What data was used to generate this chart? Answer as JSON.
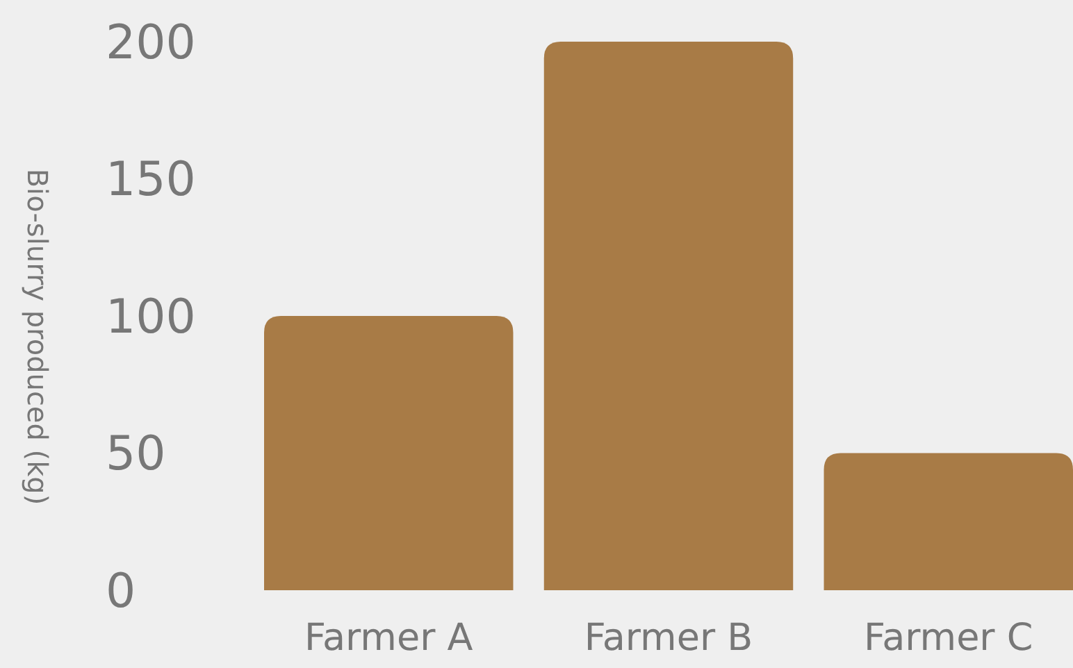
{
  "chart_data": {
    "type": "bar",
    "ylabel": "Bio-slurry produced (kg)",
    "categories": [
      "Farmer A",
      "Farmer B",
      "Farmer C"
    ],
    "values": [
      100,
      200,
      50
    ],
    "color": "#a87b46",
    "ylim": [
      0,
      200
    ],
    "yticks": [
      0,
      50,
      100,
      150,
      200
    ],
    "grid": false
  }
}
